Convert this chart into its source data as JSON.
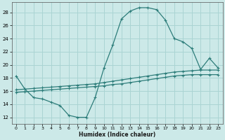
{
  "xlabel": "Humidex (Indice chaleur)",
  "bg_color": "#cce9e8",
  "grid_color": "#aad4d3",
  "line_color": "#2d7d7a",
  "xlim": [
    -0.5,
    23.5
  ],
  "ylim": [
    11.0,
    29.5
  ],
  "xticks": [
    0,
    1,
    2,
    3,
    4,
    5,
    6,
    7,
    8,
    9,
    10,
    11,
    12,
    13,
    14,
    15,
    16,
    17,
    18,
    19,
    20,
    21,
    22,
    23
  ],
  "yticks": [
    12,
    14,
    16,
    18,
    20,
    22,
    24,
    26,
    28
  ],
  "curve1_x": [
    0,
    1,
    2,
    3,
    4,
    5,
    6,
    7,
    8,
    9,
    10,
    11,
    12,
    13,
    14,
    15,
    16,
    17,
    18,
    19,
    20,
    21,
    22,
    23
  ],
  "curve1_y": [
    18.3,
    16.3,
    15.0,
    14.8,
    14.3,
    13.8,
    12.3,
    12.0,
    12.0,
    15.0,
    19.5,
    23.0,
    27.0,
    28.2,
    28.7,
    28.7,
    28.4,
    26.8,
    24.0,
    23.5,
    22.5,
    19.3,
    21.0,
    19.5
  ],
  "curve2_x": [
    0,
    23
  ],
  "curve2_y": [
    16.2,
    19.2
  ],
  "curve3_x": [
    0,
    23
  ],
  "curve3_y": [
    15.8,
    18.5
  ],
  "curve2_full_x": [
    0,
    1,
    2,
    3,
    4,
    5,
    6,
    7,
    8,
    9,
    10,
    11,
    12,
    13,
    14,
    15,
    16,
    17,
    18,
    19,
    20,
    21,
    22,
    23
  ],
  "curve2_full_y": [
    16.2,
    16.3,
    16.4,
    16.5,
    16.6,
    16.7,
    16.8,
    16.9,
    17.0,
    17.1,
    17.3,
    17.5,
    17.7,
    17.9,
    18.1,
    18.3,
    18.5,
    18.7,
    18.9,
    19.0,
    19.1,
    19.2,
    19.2,
    19.2
  ],
  "curve3_full_x": [
    0,
    1,
    2,
    3,
    4,
    5,
    6,
    7,
    8,
    9,
    10,
    11,
    12,
    13,
    14,
    15,
    16,
    17,
    18,
    19,
    20,
    21,
    22,
    23
  ],
  "curve3_full_y": [
    15.8,
    15.9,
    16.0,
    16.1,
    16.2,
    16.3,
    16.4,
    16.5,
    16.6,
    16.7,
    16.8,
    17.0,
    17.1,
    17.3,
    17.5,
    17.7,
    17.9,
    18.1,
    18.3,
    18.4,
    18.5,
    18.5,
    18.5,
    18.5
  ]
}
